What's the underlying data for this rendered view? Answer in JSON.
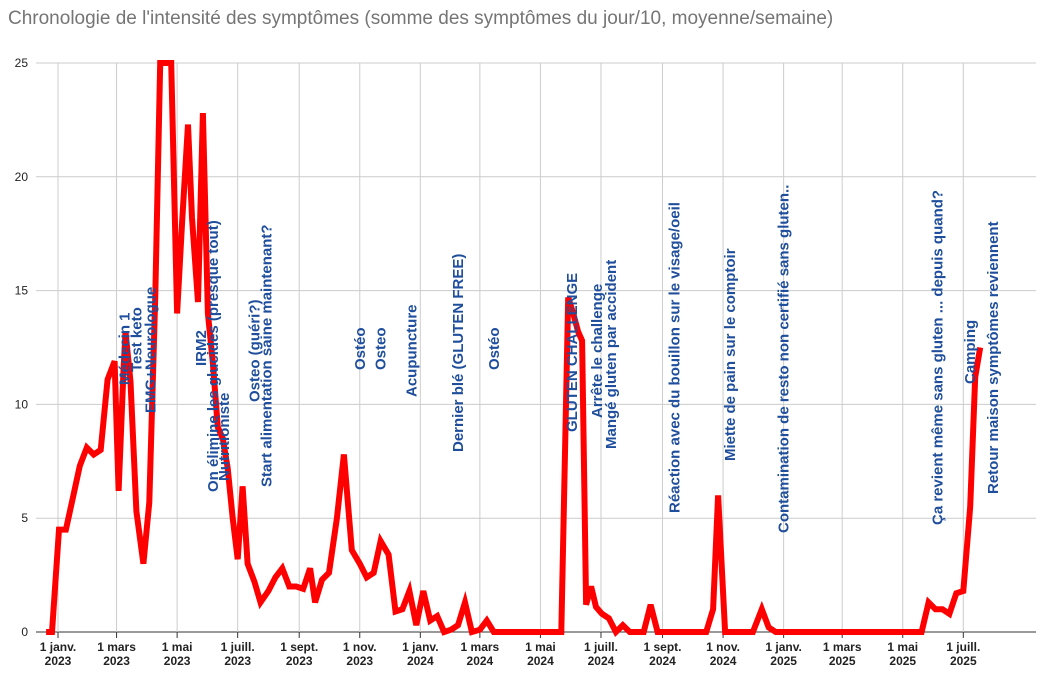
{
  "chart_data": {
    "type": "line",
    "title": "Chronologie de l'intensité des symptômes (somme des symptômes du jour/10, moyenne/semaine)",
    "xlabel": "",
    "ylabel": "",
    "x_range": [
      "2023-01-01",
      "2025-08-10"
    ],
    "ylim": [
      0,
      25
    ],
    "yticks": [
      0,
      5,
      10,
      15,
      20,
      25
    ],
    "xticks": [
      {
        "date": "2023-01-01",
        "label1": "1 janv.",
        "label2": "2023"
      },
      {
        "date": "2023-03-01",
        "label1": "1 mars",
        "label2": "2023"
      },
      {
        "date": "2023-05-01",
        "label1": "1 mai",
        "label2": "2023"
      },
      {
        "date": "2023-07-01",
        "label1": "1 juill.",
        "label2": "2023"
      },
      {
        "date": "2023-09-01",
        "label1": "1 sept.",
        "label2": "2023"
      },
      {
        "date": "2023-11-01",
        "label1": "1 nov.",
        "label2": "2023"
      },
      {
        "date": "2024-01-01",
        "label1": "1 janv.",
        "label2": "2024"
      },
      {
        "date": "2024-03-01",
        "label1": "1 mars",
        "label2": "2024"
      },
      {
        "date": "2024-05-01",
        "label1": "1 mai",
        "label2": "2024"
      },
      {
        "date": "2024-07-01",
        "label1": "1 juill.",
        "label2": "2024"
      },
      {
        "date": "2024-09-01",
        "label1": "1 sept.",
        "label2": "2024"
      },
      {
        "date": "2024-11-01",
        "label1": "1 nov.",
        "label2": "2024"
      },
      {
        "date": "2025-01-01",
        "label1": "1 janv.",
        "label2": "2025"
      },
      {
        "date": "2025-03-01",
        "label1": "1 mars",
        "label2": "2025"
      },
      {
        "date": "2025-05-01",
        "label1": "1 mai",
        "label2": "2025"
      },
      {
        "date": "2025-07-01",
        "label1": "1 juill.",
        "label2": "2025"
      }
    ],
    "grid": true,
    "line_color": "#ff0000",
    "annotation_color": "#1f4e9c",
    "series": [
      {
        "name": "",
        "points": [
          [
            "2022-12-20",
            0
          ],
          [
            "2022-12-26",
            0
          ],
          [
            "2023-01-02",
            4.5
          ],
          [
            "2023-01-09",
            4.5
          ],
          [
            "2023-01-16",
            5.9
          ],
          [
            "2023-01-23",
            7.3
          ],
          [
            "2023-01-30",
            8.1
          ],
          [
            "2023-02-06",
            7.8
          ],
          [
            "2023-02-13",
            8.0
          ],
          [
            "2023-02-20",
            11.1
          ],
          [
            "2023-02-27",
            11.9
          ],
          [
            "2023-03-03",
            6.2
          ],
          [
            "2023-03-08",
            11.5
          ],
          [
            "2023-03-10",
            13.2
          ],
          [
            "2023-03-15",
            11.0
          ],
          [
            "2023-03-21",
            5.3
          ],
          [
            "2023-03-28",
            3.0
          ],
          [
            "2023-04-03",
            5.7
          ],
          [
            "2023-04-09",
            14.8
          ],
          [
            "2023-04-14",
            25.0
          ],
          [
            "2023-04-20",
            25.0
          ],
          [
            "2023-04-25",
            25.0
          ],
          [
            "2023-05-01",
            14.0
          ],
          [
            "2023-05-06",
            18.0
          ],
          [
            "2023-05-12",
            22.3
          ],
          [
            "2023-05-16",
            18.2
          ],
          [
            "2023-05-22",
            14.5
          ],
          [
            "2023-05-27",
            22.8
          ],
          [
            "2023-06-01",
            14.0
          ],
          [
            "2023-06-06",
            11.8
          ],
          [
            "2023-06-11",
            9.0
          ],
          [
            "2023-06-16",
            8.5
          ],
          [
            "2023-06-21",
            7.2
          ],
          [
            "2023-06-26",
            5.0
          ],
          [
            "2023-07-01",
            3.2
          ],
          [
            "2023-07-06",
            6.4
          ],
          [
            "2023-07-11",
            3.0
          ],
          [
            "2023-07-18",
            2.2
          ],
          [
            "2023-07-24",
            1.3
          ],
          [
            "2023-08-01",
            1.8
          ],
          [
            "2023-08-08",
            2.4
          ],
          [
            "2023-08-15",
            2.8
          ],
          [
            "2023-08-22",
            2.0
          ],
          [
            "2023-08-29",
            2.0
          ],
          [
            "2023-09-05",
            1.9
          ],
          [
            "2023-09-12",
            2.8
          ],
          [
            "2023-09-17",
            1.3
          ],
          [
            "2023-09-24",
            2.3
          ],
          [
            "2023-10-01",
            2.6
          ],
          [
            "2023-10-09",
            5.0
          ],
          [
            "2023-10-16",
            7.8
          ],
          [
            "2023-10-24",
            3.6
          ],
          [
            "2023-11-01",
            3.0
          ],
          [
            "2023-11-08",
            2.4
          ],
          [
            "2023-11-15",
            2.6
          ],
          [
            "2023-11-22",
            4.0
          ],
          [
            "2023-11-30",
            3.4
          ],
          [
            "2023-12-07",
            0.9
          ],
          [
            "2023-12-14",
            1.0
          ],
          [
            "2023-12-21",
            1.8
          ],
          [
            "2023-12-28",
            0.3
          ],
          [
            "2024-01-04",
            1.8
          ],
          [
            "2024-01-11",
            0.5
          ],
          [
            "2024-01-18",
            0.7
          ],
          [
            "2024-01-25",
            0.0
          ],
          [
            "2024-02-01",
            0.1
          ],
          [
            "2024-02-08",
            0.3
          ],
          [
            "2024-02-15",
            1.3
          ],
          [
            "2024-02-22",
            0.0
          ],
          [
            "2024-03-01",
            0.1
          ],
          [
            "2024-03-08",
            0.5
          ],
          [
            "2024-03-15",
            0.0
          ],
          [
            "2024-04-01",
            0.0
          ],
          [
            "2024-05-01",
            0.0
          ],
          [
            "2024-05-22",
            0.0
          ],
          [
            "2024-05-29",
            14.7
          ],
          [
            "2024-06-03",
            14.0
          ],
          [
            "2024-06-08",
            13.2
          ],
          [
            "2024-06-12",
            12.8
          ],
          [
            "2024-06-16",
            1.2
          ],
          [
            "2024-06-21",
            2.0
          ],
          [
            "2024-06-26",
            1.1
          ],
          [
            "2024-07-02",
            0.8
          ],
          [
            "2024-07-09",
            0.6
          ],
          [
            "2024-07-16",
            0.0
          ],
          [
            "2024-07-23",
            0.3
          ],
          [
            "2024-07-30",
            0.0
          ],
          [
            "2024-08-06",
            0.0
          ],
          [
            "2024-08-13",
            0.0
          ],
          [
            "2024-08-20",
            1.2
          ],
          [
            "2024-08-27",
            0.0
          ],
          [
            "2024-09-15",
            0.0
          ],
          [
            "2024-10-15",
            0.0
          ],
          [
            "2024-10-22",
            1.0
          ],
          [
            "2024-10-27",
            6.0
          ],
          [
            "2024-11-03",
            0.0
          ],
          [
            "2024-11-20",
            0.0
          ],
          [
            "2024-12-01",
            0.0
          ],
          [
            "2024-12-10",
            1.0
          ],
          [
            "2024-12-17",
            0.2
          ],
          [
            "2024-12-24",
            0.0
          ],
          [
            "2025-02-01",
            0.0
          ],
          [
            "2025-04-01",
            0.0
          ],
          [
            "2025-05-01",
            0.0
          ],
          [
            "2025-05-20",
            0.0
          ],
          [
            "2025-05-27",
            1.3
          ],
          [
            "2025-06-03",
            1.0
          ],
          [
            "2025-06-10",
            1.0
          ],
          [
            "2025-06-17",
            0.8
          ],
          [
            "2025-06-24",
            1.7
          ],
          [
            "2025-07-01",
            1.8
          ],
          [
            "2025-07-08",
            5.5
          ],
          [
            "2025-07-13",
            11.2
          ],
          [
            "2025-07-18",
            12.5
          ]
        ]
      }
    ],
    "annotations": [
      {
        "date": "2023-03-09",
        "lines": [
          "Médecin 1"
        ]
      },
      {
        "date": "2023-03-21",
        "lines": [
          "Test keto"
        ]
      },
      {
        "date": "2023-04-04",
        "lines": [
          "EMG+Neurologue"
        ]
      },
      {
        "date": "2023-05-25",
        "lines": [
          "IRM2"
        ]
      },
      {
        "date": "2023-06-06",
        "lines": [
          "On élimine les glucides (presque tout)"
        ]
      },
      {
        "date": "2023-06-17",
        "lines": [
          "Nutritioniste"
        ]
      },
      {
        "date": "2023-07-18",
        "lines": [
          "Osteo (guéri?)"
        ]
      },
      {
        "date": "2023-07-30",
        "lines": [
          "Start alimentation saine maintenant?"
        ]
      },
      {
        "date": "2023-11-01",
        "lines": [
          "Ostéo"
        ]
      },
      {
        "date": "2023-11-22",
        "lines": [
          "Osteo"
        ]
      },
      {
        "date": "2023-12-23",
        "lines": [
          "Acupuncture"
        ]
      },
      {
        "date": "2024-02-08",
        "lines": [
          "Dernier blé (GLUTEN FREE)"
        ]
      },
      {
        "date": "2024-03-15",
        "lines": [
          "Ostéo"
        ]
      },
      {
        "date": "2024-06-02",
        "lines": [
          "GLUTEN CHALLENGE"
        ]
      },
      {
        "date": "2024-06-27",
        "lines": [
          "Arrête le challenge"
        ]
      },
      {
        "date": "2024-07-11",
        "lines": [
          "Mangé gluten par accident"
        ]
      },
      {
        "date": "2024-09-13",
        "lines": [
          "Réaction avec du bouillon sur le visage/oeil"
        ]
      },
      {
        "date": "2024-11-08",
        "lines": [
          "Miette de pain sur le comptoir"
        ]
      },
      {
        "date": "2025-01-01",
        "lines": [
          "Contamination de resto non certifié sans gluten.."
        ]
      },
      {
        "date": "2025-06-05",
        "lines": [
          "Ça revient même sans gluten ... depuis quand?"
        ]
      },
      {
        "date": "2025-07-08",
        "lines": [
          "Camping"
        ]
      },
      {
        "date": "2025-07-31",
        "lines": [
          "Retour maison symptômes reviennent"
        ]
      }
    ]
  }
}
